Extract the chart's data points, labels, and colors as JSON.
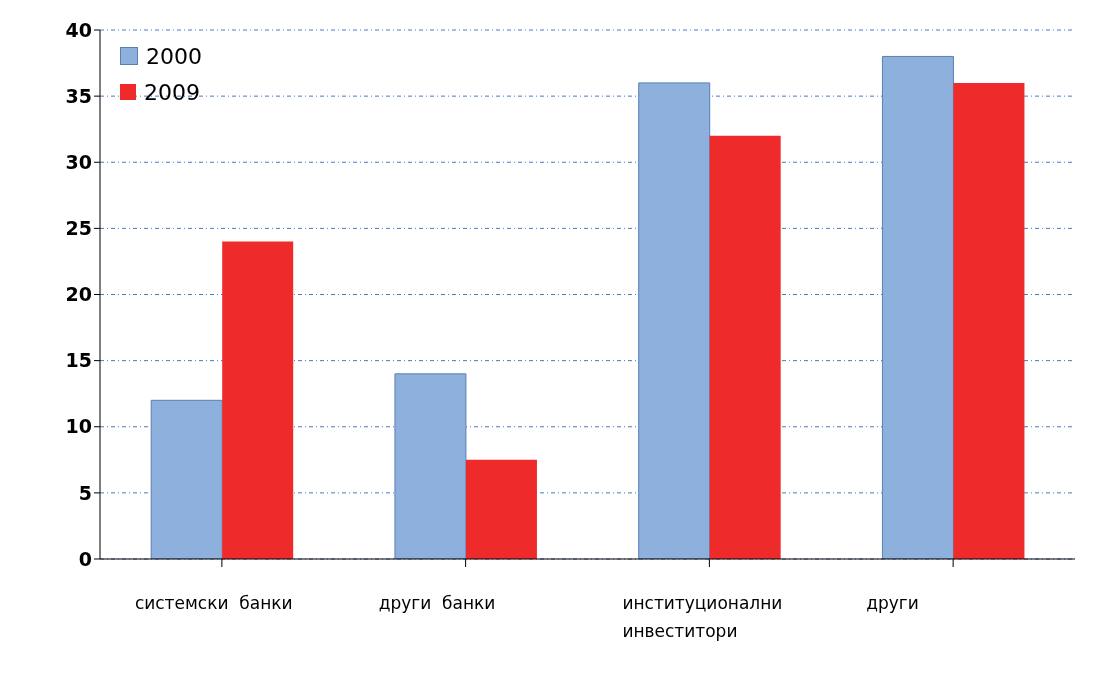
{
  "chart_data": {
    "type": "bar",
    "categories": [
      "системски  банки",
      "други  банки",
      "институционални инвеститори",
      "други"
    ],
    "series": [
      {
        "name": "2000",
        "color": "#8eb0dc",
        "values": [
          12,
          14,
          36,
          38
        ]
      },
      {
        "name": "2009",
        "color": "#ee2a2a",
        "values": [
          24,
          7.5,
          32,
          36
        ]
      }
    ],
    "ylim": [
      0,
      40
    ],
    "yticks": [
      0,
      5,
      10,
      15,
      20,
      25,
      30,
      35,
      40
    ],
    "grid": "y",
    "legend": "top left"
  }
}
